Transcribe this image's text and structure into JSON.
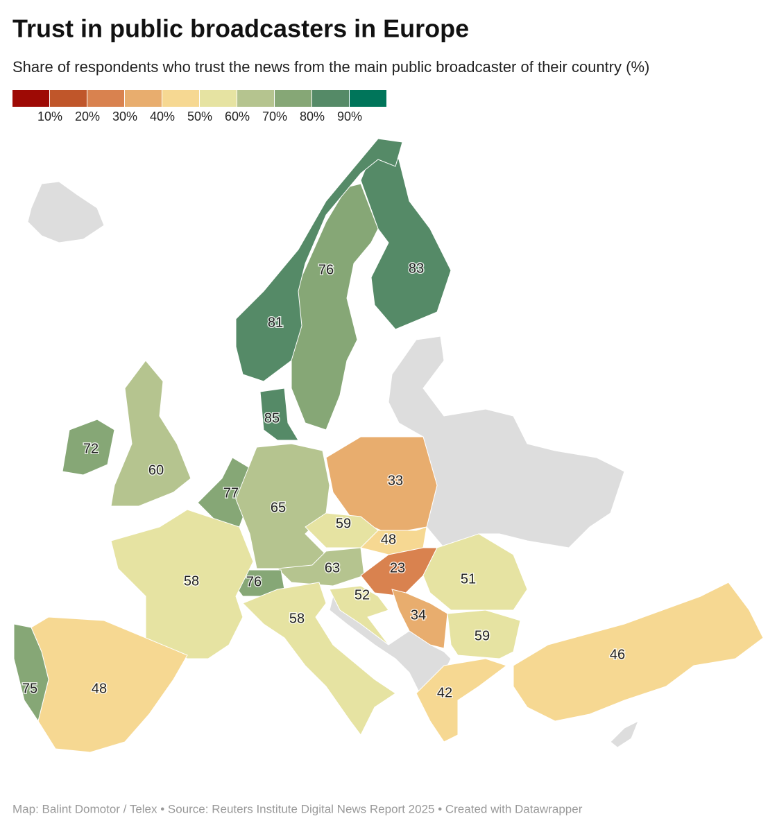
{
  "title": "Trust in public broadcasters in Europe",
  "subtitle": "Share of respondents who trust the news from the main public broadcaster of their country (%)",
  "legend": {
    "colors": [
      "#9e0a05",
      "#c0562a",
      "#d9824f",
      "#e8ad6e",
      "#f6d892",
      "#e6e3a2",
      "#b5c48f",
      "#86a776",
      "#558a67",
      "#00755a"
    ],
    "ticks": [
      {
        "value": 10,
        "label": "10%"
      },
      {
        "value": 20,
        "label": "20%"
      },
      {
        "value": 30,
        "label": "30%"
      },
      {
        "value": 40,
        "label": "40%"
      },
      {
        "value": 50,
        "label": "50%"
      },
      {
        "value": 60,
        "label": "60%"
      },
      {
        "value": 70,
        "label": "70%"
      },
      {
        "value": 80,
        "label": "80%"
      },
      {
        "value": 90,
        "label": "90%"
      }
    ]
  },
  "countries": [
    83,
    76,
    81,
    85,
    72,
    60,
    77,
    65,
    33,
    59,
    48,
    63,
    76,
    23,
    51,
    58,
    52,
    34,
    58,
    59,
    46,
    42,
    48,
    75
  ],
  "source": "Map: Balint Domotor / Telex • Source: Reuters Institute Digital News Report 2025 • Created with Datawrapper"
}
